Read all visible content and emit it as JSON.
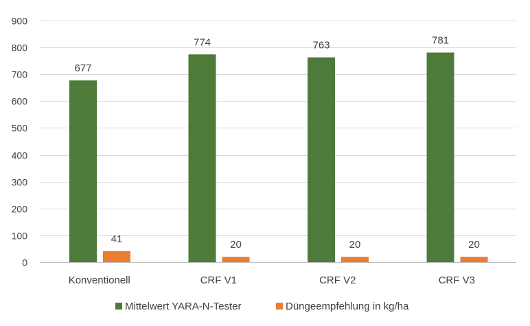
{
  "chart_data": {
    "type": "bar",
    "categories": [
      "Konventionell",
      "CRF V1",
      "CRF V2",
      "CRF V3"
    ],
    "series": [
      {
        "name": "Mittelwert YARA-N-Tester",
        "values": [
          677,
          774,
          763,
          781
        ],
        "color": "#4e7a3a"
      },
      {
        "name": "Düngeempfehlung in kg/ha",
        "values": [
          41,
          20,
          20,
          20
        ],
        "color": "#ed7d31"
      }
    ],
    "ylim": [
      0,
      900
    ],
    "yticks": [
      0,
      100,
      200,
      300,
      400,
      500,
      600,
      700,
      800,
      900
    ],
    "grid": true,
    "legend_position": "bottom",
    "data_labels": true
  }
}
